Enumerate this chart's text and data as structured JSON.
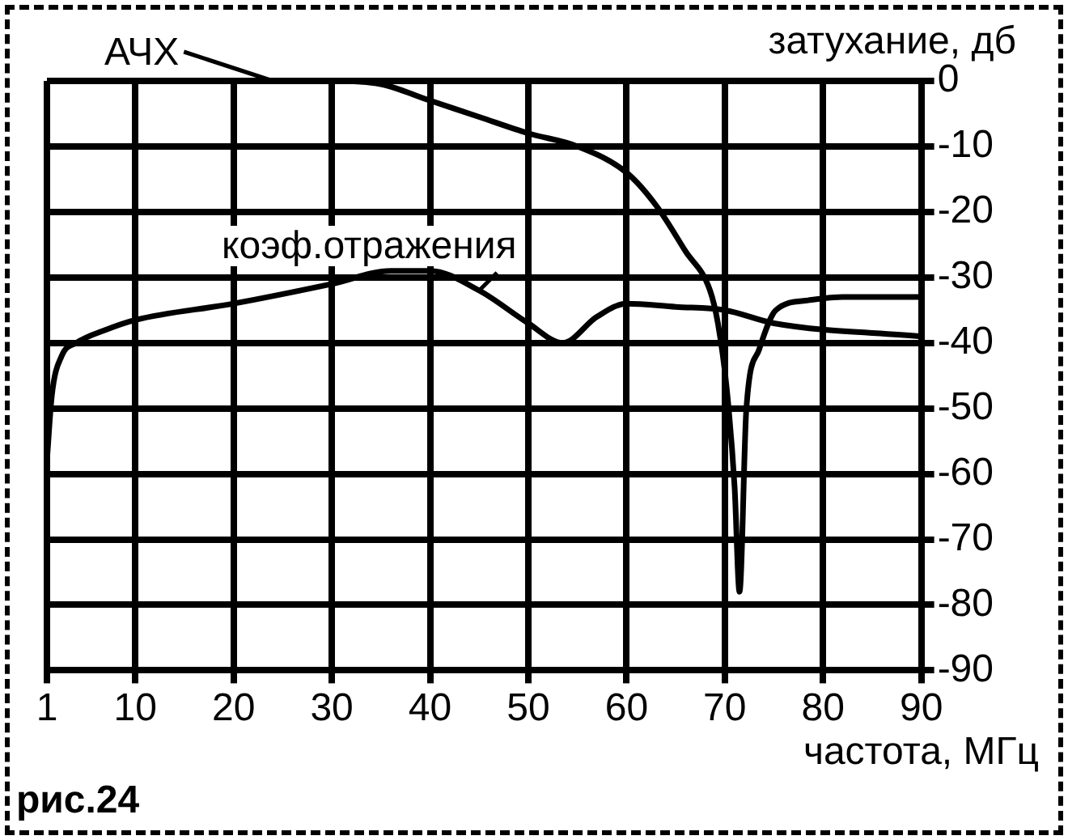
{
  "chart_data": {
    "type": "line",
    "xlabel": "частота, МГц",
    "ylabel": "затухание, дб",
    "xlim": [
      1,
      90
    ],
    "xticks": [
      1,
      10,
      20,
      30,
      40,
      50,
      60,
      70,
      80,
      90
    ],
    "ylim": [
      -90,
      0
    ],
    "yticks": [
      0,
      -10,
      -20,
      -30,
      -40,
      -50,
      -60,
      -70,
      -80,
      -90
    ],
    "grid": true,
    "marker": "none",
    "line_style": "solid",
    "annotations": [
      "рис.24"
    ],
    "series": [
      {
        "name": "АЧХ",
        "color": "#000000",
        "x": [
          24,
          30,
          35,
          40,
          45,
          50,
          55,
          60,
          63,
          66,
          68.5,
          69.3,
          70.2,
          71,
          71.5,
          72.2,
          73.5,
          75.2,
          78.5,
          82,
          89.3,
          90
        ],
        "values": [
          0,
          0,
          -0.5,
          -3,
          -5.5,
          -8,
          -10,
          -14,
          -19,
          -26,
          -32,
          -37,
          -47,
          -62,
          -78,
          -50,
          -41,
          -35,
          -33.5,
          -33,
          -33,
          -33
        ]
      },
      {
        "name": "коэф.отражения",
        "color": "#000000",
        "x": [
          1,
          1.5,
          2.5,
          4,
          7,
          10,
          20,
          30,
          36,
          40,
          45,
          50,
          53.5,
          57,
          60,
          65,
          70,
          75,
          90
        ],
        "values": [
          -58,
          -48,
          -42,
          -40,
          -38,
          -36.5,
          -34,
          -31,
          -29,
          -29,
          -32,
          -37,
          -40,
          -36,
          -34,
          -34.5,
          -35,
          -37,
          -39
        ]
      }
    ]
  }
}
